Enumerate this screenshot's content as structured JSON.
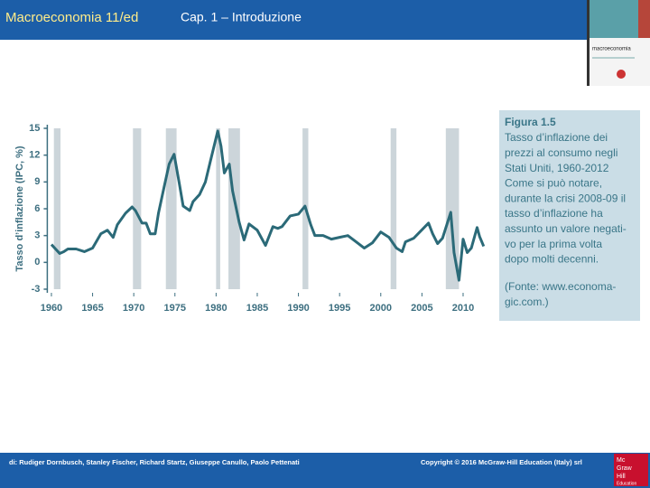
{
  "header": {
    "title": "Macroeconomia 11/ed",
    "chapter": "Cap. 1 – Introduzione"
  },
  "cover": {
    "title": "macroeconomia"
  },
  "chart_data": {
    "type": "line",
    "y_label": "Tasso d’inflazione (IPC, %)",
    "xlim": [
      1959.5,
      2013.5
    ],
    "xticks": [
      1960,
      1965,
      1970,
      1975,
      1980,
      1985,
      1990,
      1995,
      2000,
      2005,
      2010
    ],
    "ylim": [
      -3,
      15
    ],
    "yticks": [
      -3,
      0,
      3,
      6,
      9,
      12,
      15
    ],
    "shaded_regions": [
      [
        1960.3,
        1961.1
      ],
      [
        1969.9,
        1970.9
      ],
      [
        1973.9,
        1975.2
      ],
      [
        1980.0,
        1980.5
      ],
      [
        1981.5,
        1982.9
      ],
      [
        1990.5,
        1991.2
      ],
      [
        2001.2,
        2001.9
      ],
      [
        2007.9,
        2009.5
      ]
    ],
    "shade_color": "#ccd5da",
    "series": [
      {
        "color": "#2b6a78",
        "x": [
          1960,
          1960.5,
          1961,
          1961.5,
          1962,
          1963,
          1964,
          1965,
          1966,
          1966.8,
          1967.5,
          1968,
          1969,
          1969.8,
          1970.2,
          1971,
          1971.5,
          1972,
          1972.6,
          1973,
          1973.7,
          1974.3,
          1974.9,
          1975.5,
          1976,
          1976.8,
          1977.2,
          1978,
          1978.7,
          1979.3,
          1980.2,
          1980.6,
          1981,
          1981.6,
          1982,
          1982.8,
          1983.4,
          1984,
          1985,
          1986,
          1986.9,
          1987.5,
          1988,
          1989,
          1990,
          1990.8,
          1991.5,
          1992,
          1993,
          1994,
          1995,
          1996,
          1997,
          1998,
          1999,
          2000,
          2001,
          2001.9,
          2002.6,
          2003,
          2004,
          2005.8,
          2006.3,
          2006.9,
          2007.5,
          2008.5,
          2008.9,
          2009.5,
          2010,
          2010.5,
          2011,
          2011.7,
          2012,
          2012.5
        ],
        "values": [
          2,
          1.5,
          1,
          1.2,
          1.5,
          1.5,
          1.2,
          1.6,
          3.2,
          3.6,
          2.8,
          4.2,
          5.5,
          6.2,
          5.8,
          4.4,
          4.4,
          3.2,
          3.2,
          5.5,
          8.5,
          11,
          12.1,
          9,
          6.3,
          5.8,
          6.8,
          7.6,
          9,
          11.3,
          14.7,
          13,
          10,
          11,
          8,
          4.5,
          2.5,
          4.3,
          3.6,
          1.9,
          4,
          3.8,
          4,
          5.2,
          5.4,
          6.3,
          4.2,
          3,
          3,
          2.6,
          2.8,
          3,
          2.3,
          1.6,
          2.2,
          3.4,
          2.8,
          1.6,
          1.2,
          2.3,
          2.7,
          4.4,
          3.2,
          2.1,
          2.7,
          5.6,
          1.1,
          -2,
          2.6,
          1.1,
          1.6,
          3.9,
          2.9,
          1.8
        ]
      }
    ]
  },
  "caption": {
    "figure": "Figura 1.5",
    "lines": [
      "Tasso d’inflazione dei",
      "prezzi al consumo negli",
      "Stati Uniti, 1960-2012",
      "Come si può notare,",
      "durante la crisi 2008-09 il",
      "tasso d’inflazione ha",
      "assunto un valore negati-",
      "vo per la prima volta",
      "dopo molti decenni."
    ],
    "source": [
      "(Fonte: www.economa-",
      "gic.com.)"
    ]
  },
  "footer": {
    "authors": "di: Rudiger Dornbusch, Stanley Fischer, Richard Startz, Giuseppe Canullo, Paolo Pettenati",
    "copyright": "Copyright © 2016 McGraw-Hill Education (Italy) srl",
    "logo": [
      "Mc",
      "Graw",
      "Hill",
      "Education"
    ]
  }
}
